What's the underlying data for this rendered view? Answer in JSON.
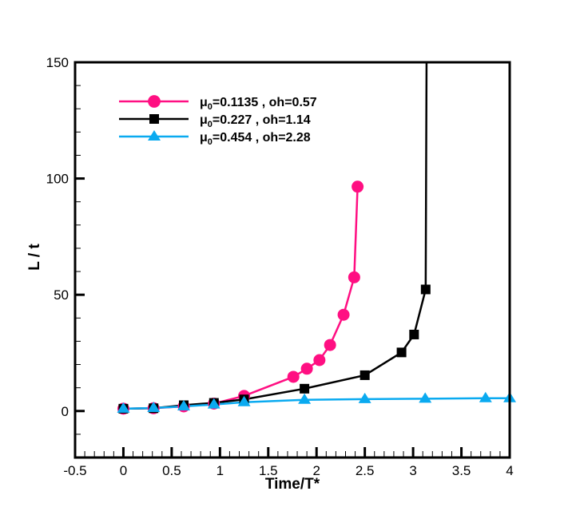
{
  "chart_data": {
    "type": "line",
    "title": "",
    "xlabel": "Time/T*",
    "ylabel": "L / t",
    "xlim": [
      -0.5,
      4
    ],
    "ylim": [
      -20,
      150
    ],
    "x_ticks": [
      -0.5,
      0,
      0.5,
      1,
      1.5,
      2,
      2.5,
      3,
      3.5,
      4
    ],
    "x_tick_labels": [
      "-0.5",
      "0",
      "0.5",
      "1",
      "1.5",
      "2",
      "2.5",
      "3",
      "3.5",
      "4"
    ],
    "y_ticks": [
      0,
      50,
      100,
      150
    ],
    "y_tick_labels": [
      "0",
      "50",
      "100",
      "150"
    ],
    "x_minor_step": 0.1,
    "y_minor_step": 10,
    "grid": false,
    "legend_position": "top-left",
    "series": [
      {
        "name": "μ0=0.1135 , oh=0.57",
        "legend_main": "μ",
        "legend_sub": "0",
        "legend_rest": "=0.1135 , oh=0.57",
        "color": "#ff0f82",
        "marker": "circle",
        "x": [
          0,
          0.3125,
          0.625,
          0.9375,
          1.25,
          1.76,
          1.9,
          2.03,
          2.14,
          2.28,
          2.39,
          2.425
        ],
        "y": [
          1,
          1.2,
          2,
          3.2,
          6.5,
          14.7,
          18.2,
          21.9,
          28.4,
          41.4,
          57.5,
          96.5
        ]
      },
      {
        "name": "μ0=0.227 , oh=1.14",
        "legend_main": "μ",
        "legend_sub": "0",
        "legend_rest": "=0.227 , oh=1.14",
        "color": "#000000",
        "marker": "square",
        "x": [
          0,
          0.3125,
          0.625,
          0.9375,
          1.25,
          1.875,
          2.5,
          2.88,
          3.01,
          3.13
        ],
        "y": [
          1,
          1.2,
          2.5,
          3.5,
          5,
          9.6,
          15.4,
          25.2,
          32.9,
          52.3
        ],
        "extends_to": [
          3.14,
          160
        ]
      },
      {
        "name": "μ0=0.454 , oh=2.28",
        "legend_main": "μ",
        "legend_sub": "0",
        "legend_rest": "=0.454 , oh=2.28",
        "color": "#0aaaf0",
        "marker": "triangle",
        "x": [
          0,
          0.3125,
          0.625,
          0.9375,
          1.25,
          1.875,
          2.5,
          3.125,
          3.75,
          4.0
        ],
        "y": [
          1,
          1.3,
          2,
          2.8,
          3.8,
          4.8,
          5.1,
          5.3,
          5.5,
          5.5
        ]
      }
    ]
  }
}
